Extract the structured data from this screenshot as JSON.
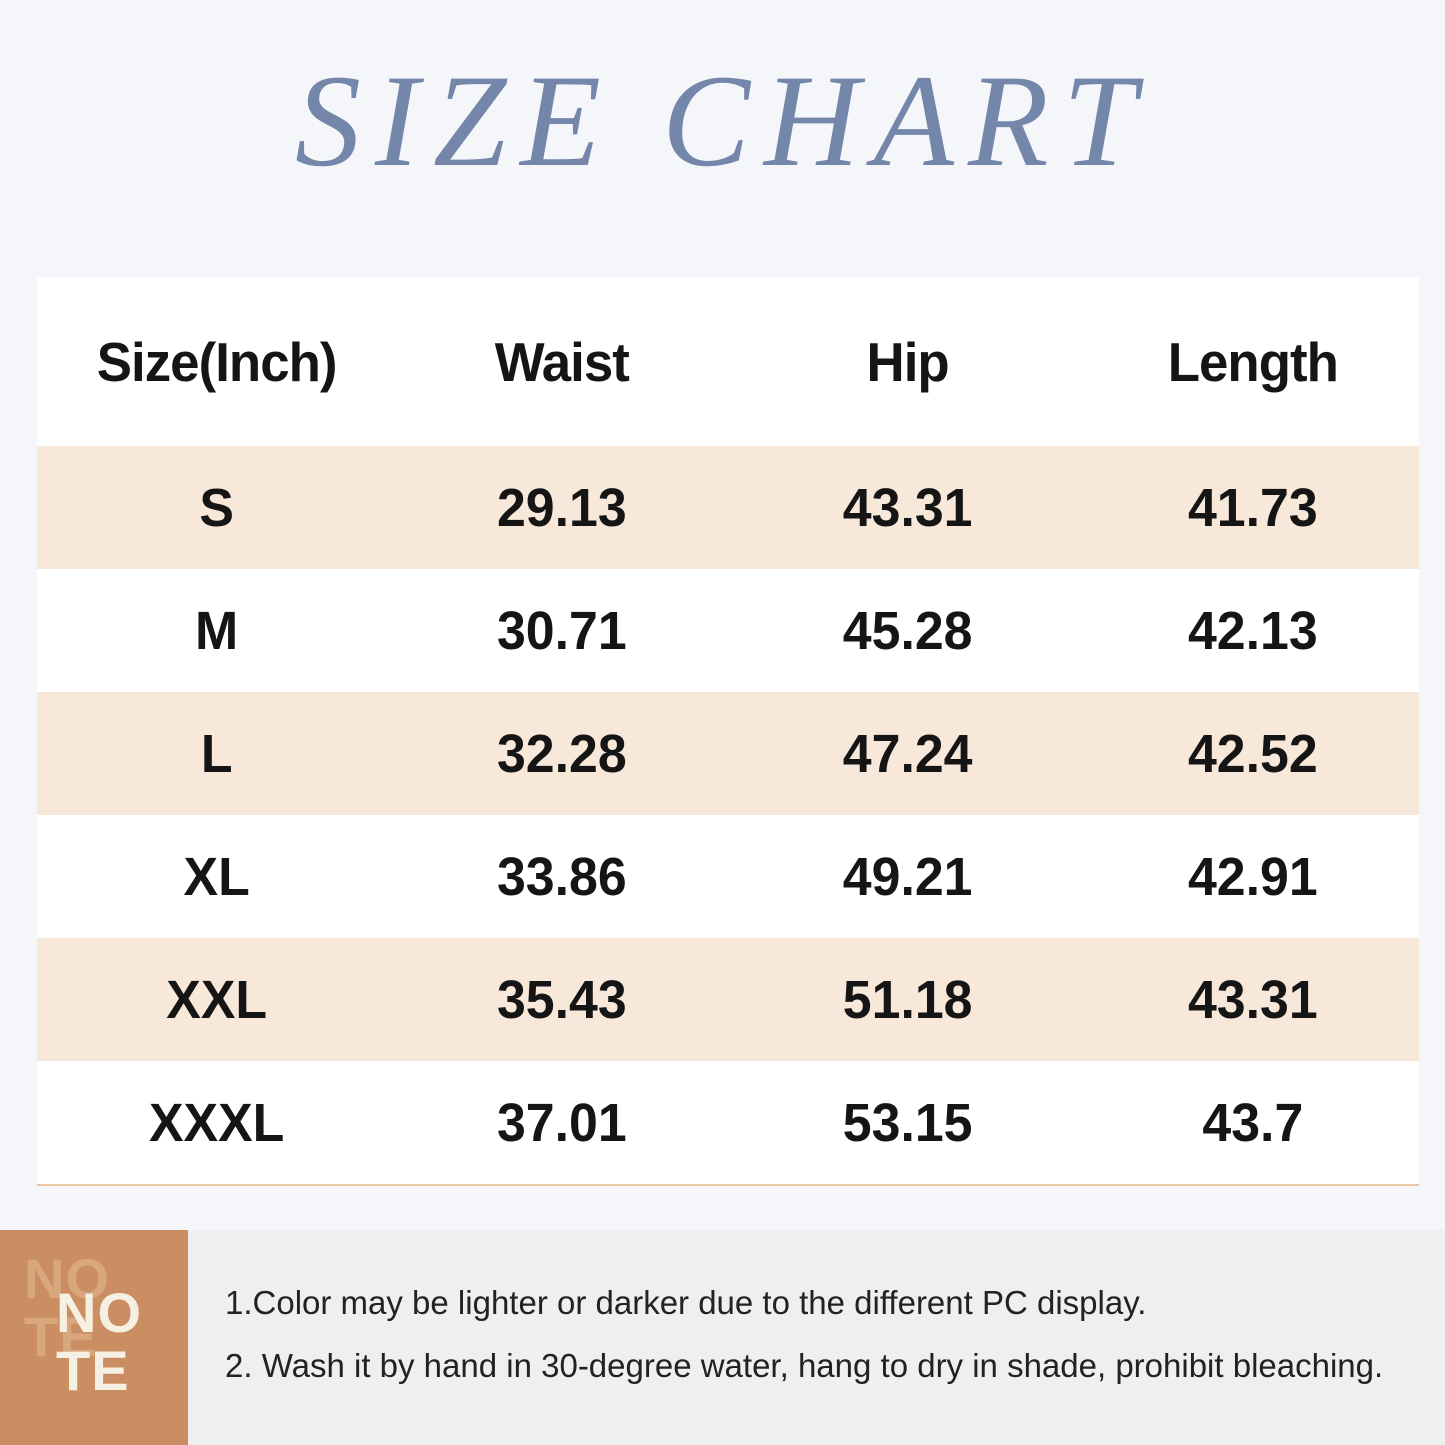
{
  "title": "SIZE CHART",
  "table": {
    "headers": [
      "Size(Inch)",
      "Waist",
      "Hip",
      "Length"
    ],
    "rows": [
      [
        "S",
        "29.13",
        "43.31",
        "41.73"
      ],
      [
        "M",
        "30.71",
        "45.28",
        "42.13"
      ],
      [
        "L",
        "32.28",
        "47.24",
        "42.52"
      ],
      [
        "XL",
        "33.86",
        "49.21",
        "42.91"
      ],
      [
        "XXL",
        "35.43",
        "51.18",
        "43.31"
      ],
      [
        "XXXL",
        "37.01",
        "53.15",
        "43.7"
      ]
    ]
  },
  "note": {
    "badge_line1": "NO",
    "badge_line2": "TE",
    "items": [
      "1.Color may be lighter or darker due to the different PC display.",
      "2. Wash it by hand in 30-degree water, hang to dry in shade, prohibit bleaching."
    ]
  },
  "colors": {
    "page_bg": "#f4f6f9",
    "title_text": "#7487aa",
    "row_highlight": "#f8e8da",
    "table_underline": "#eac9a4",
    "note_badge_bg": "#cb8e62",
    "note_badge_ghost_text": "#d9a77d",
    "note_badge_text": "#f6f0e2",
    "note_panel_bg": "#efeff0",
    "body_text": "#151515"
  }
}
